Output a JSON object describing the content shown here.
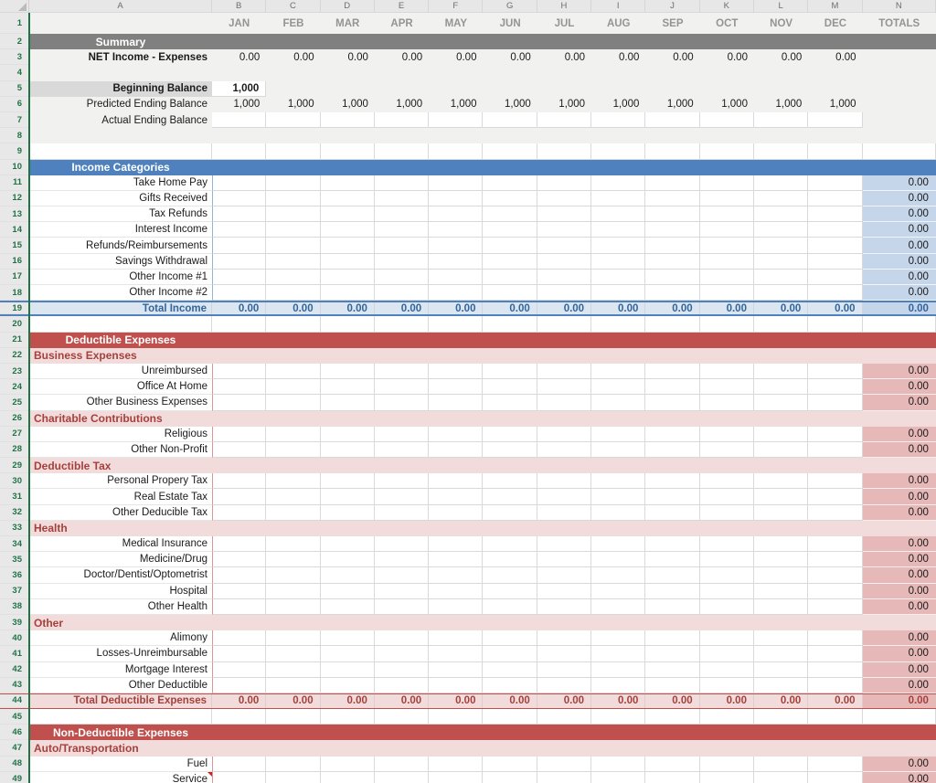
{
  "sheet": {
    "column_letters": [
      "A",
      "B",
      "C",
      "D",
      "E",
      "F",
      "G",
      "H",
      "I",
      "J",
      "K",
      "L",
      "M",
      "N"
    ],
    "month_headers": [
      "JAN",
      "FEB",
      "MAR",
      "APR",
      "MAY",
      "JUN",
      "JUL",
      "AUG",
      "SEP",
      "OCT",
      "NOV",
      "DEC"
    ],
    "totals_header": "TOTALS"
  },
  "colors": {
    "accent_blue": "#4E81BD",
    "accent_red": "#C0504D",
    "summary_gray": "#808080",
    "pink_band": "#F2DCDB",
    "totals_blue_cell": "#C5D5EA",
    "totals_pink_cell": "#E6B8B7",
    "total_income_row": "#DCE6F1",
    "blue_text": "#31659C",
    "red_text": "#A5403D",
    "row_number_green": "#217346",
    "gridline": "#D9D9D9"
  },
  "rows": [
    {
      "n": 1,
      "type": "months"
    },
    {
      "n": 2,
      "type": "section",
      "variant": "gray",
      "label": "Summary"
    },
    {
      "n": 3,
      "type": "summary_values",
      "label": "NET Income - Expenses",
      "bold": true,
      "values": [
        "0.00",
        "0.00",
        "0.00",
        "0.00",
        "0.00",
        "0.00",
        "0.00",
        "0.00",
        "0.00",
        "0.00",
        "0.00",
        "0.00"
      ],
      "total": ""
    },
    {
      "n": 4,
      "type": "blank"
    },
    {
      "n": 5,
      "type": "begin_balance",
      "label": "Beginning Balance",
      "value": "1,000"
    },
    {
      "n": 6,
      "type": "summary_values",
      "label": "Predicted Ending Balance",
      "bold": false,
      "values": [
        "1,000",
        "1,000",
        "1,000",
        "1,000",
        "1,000",
        "1,000",
        "1,000",
        "1,000",
        "1,000",
        "1,000",
        "1,000",
        "1,000"
      ],
      "total": ""
    },
    {
      "n": 7,
      "type": "input_row",
      "label": "Actual Ending Balance"
    },
    {
      "n": 8,
      "type": "blank"
    },
    {
      "n": 9,
      "type": "white"
    },
    {
      "n": 10,
      "type": "section",
      "variant": "blue",
      "label": "Income Categories"
    },
    {
      "n": 11,
      "type": "item",
      "variant": "income",
      "label": "Take Home Pay",
      "total": "0.00"
    },
    {
      "n": 12,
      "type": "item",
      "variant": "income",
      "label": "Gifts Received",
      "total": "0.00"
    },
    {
      "n": 13,
      "type": "item",
      "variant": "income",
      "label": "Tax Refunds",
      "total": "0.00"
    },
    {
      "n": 14,
      "type": "item",
      "variant": "income",
      "label": "Interest Income",
      "total": "0.00"
    },
    {
      "n": 15,
      "type": "item",
      "variant": "income",
      "label": "Refunds/Reimbursements",
      "total": "0.00"
    },
    {
      "n": 16,
      "type": "item",
      "variant": "income",
      "label": "Savings Withdrawal",
      "total": "0.00"
    },
    {
      "n": 17,
      "type": "item",
      "variant": "income",
      "label": "Other Income #1",
      "total": "0.00"
    },
    {
      "n": 18,
      "type": "item",
      "variant": "income",
      "label": "Other Income #2",
      "total": "0.00"
    },
    {
      "n": 19,
      "type": "total",
      "variant": "income",
      "label": "Total Income",
      "values": [
        "0.00",
        "0.00",
        "0.00",
        "0.00",
        "0.00",
        "0.00",
        "0.00",
        "0.00",
        "0.00",
        "0.00",
        "0.00",
        "0.00"
      ],
      "total": "0.00"
    },
    {
      "n": 20,
      "type": "white"
    },
    {
      "n": 21,
      "type": "section",
      "variant": "red",
      "label": "Deductible Expenses"
    },
    {
      "n": 22,
      "type": "subsection",
      "label": "Business Expenses"
    },
    {
      "n": 23,
      "type": "item",
      "variant": "expense",
      "label": "Unreimbursed",
      "total": "0.00"
    },
    {
      "n": 24,
      "type": "item",
      "variant": "expense",
      "label": "Office At Home",
      "total": "0.00"
    },
    {
      "n": 25,
      "type": "item",
      "variant": "expense",
      "label": "Other Business Expenses",
      "total": "0.00"
    },
    {
      "n": 26,
      "type": "subsection",
      "label": "Charitable Contributions"
    },
    {
      "n": 27,
      "type": "item",
      "variant": "expense",
      "label": "Religious",
      "total": "0.00"
    },
    {
      "n": 28,
      "type": "item",
      "variant": "expense",
      "label": "Other Non-Profit",
      "total": "0.00"
    },
    {
      "n": 29,
      "type": "subsection",
      "label": "Deductible Tax"
    },
    {
      "n": 30,
      "type": "item",
      "variant": "expense",
      "label": "Personal Propery Tax",
      "total": "0.00"
    },
    {
      "n": 31,
      "type": "item",
      "variant": "expense",
      "label": "Real Estate Tax",
      "total": "0.00"
    },
    {
      "n": 32,
      "type": "item",
      "variant": "expense",
      "label": "Other Deducible Tax",
      "total": "0.00"
    },
    {
      "n": 33,
      "type": "subsection",
      "label": "Health"
    },
    {
      "n": 34,
      "type": "item",
      "variant": "expense",
      "label": "Medical Insurance",
      "total": "0.00"
    },
    {
      "n": 35,
      "type": "item",
      "variant": "expense",
      "label": "Medicine/Drug",
      "total": "0.00"
    },
    {
      "n": 36,
      "type": "item",
      "variant": "expense",
      "label": "Doctor/Dentist/Optometrist",
      "total": "0.00"
    },
    {
      "n": 37,
      "type": "item",
      "variant": "expense",
      "label": "Hospital",
      "total": "0.00"
    },
    {
      "n": 38,
      "type": "item",
      "variant": "expense",
      "label": "Other Health",
      "total": "0.00"
    },
    {
      "n": 39,
      "type": "subsection",
      "label": "Other"
    },
    {
      "n": 40,
      "type": "item",
      "variant": "expense",
      "label": "Alimony",
      "total": "0.00"
    },
    {
      "n": 41,
      "type": "item",
      "variant": "expense",
      "label": "Losses-Unreimbursable",
      "total": "0.00"
    },
    {
      "n": 42,
      "type": "item",
      "variant": "expense",
      "label": "Mortgage Interest",
      "total": "0.00"
    },
    {
      "n": 43,
      "type": "item",
      "variant": "expense",
      "label": "Other Deductible",
      "total": "0.00"
    },
    {
      "n": 44,
      "type": "total",
      "variant": "expense",
      "label": "Total Deductible Expenses",
      "values": [
        "0.00",
        "0.00",
        "0.00",
        "0.00",
        "0.00",
        "0.00",
        "0.00",
        "0.00",
        "0.00",
        "0.00",
        "0.00",
        "0.00"
      ],
      "total": "0.00"
    },
    {
      "n": 45,
      "type": "white"
    },
    {
      "n": 46,
      "type": "section",
      "variant": "red",
      "label": "Non-Deductible Expenses"
    },
    {
      "n": 47,
      "type": "subsection",
      "label": "Auto/Transportation"
    },
    {
      "n": 48,
      "type": "item",
      "variant": "expense",
      "label": "Fuel",
      "total": "0.00"
    },
    {
      "n": 49,
      "type": "item",
      "variant": "expense",
      "label": "Service",
      "total": "0.00",
      "comment": true
    }
  ]
}
